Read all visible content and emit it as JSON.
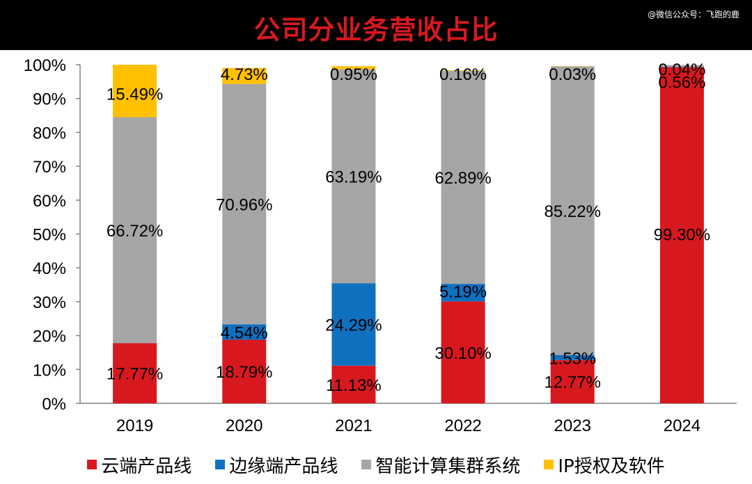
{
  "header": {
    "title": "公司分业务营收占比",
    "watermark": "@微信公众号：飞跑的鹿"
  },
  "chart_data": {
    "type": "bar",
    "stacked": true,
    "categories": [
      "2019",
      "2020",
      "2021",
      "2022",
      "2023",
      "2024"
    ],
    "ylim": [
      0,
      100
    ],
    "yticks": [
      "0%",
      "10%",
      "20%",
      "30%",
      "40%",
      "50%",
      "60%",
      "70%",
      "80%",
      "90%",
      "100%"
    ],
    "grid": false,
    "legend_position": "bottom",
    "series": [
      {
        "name": "云端产品线",
        "color": "#d7191f",
        "values": [
          17.77,
          18.79,
          11.13,
          30.1,
          12.77,
          99.3
        ],
        "labels": [
          "17.77%",
          "18.79%",
          "11.13%",
          "30.10%",
          "12.77%",
          "99.30%"
        ]
      },
      {
        "name": "边缘端产品线",
        "color": "#1070c0",
        "values": [
          0,
          4.54,
          24.29,
          5.19,
          1.53,
          0.04
        ],
        "labels": [
          "",
          "4.54%",
          "24.29%",
          "5.19%",
          "1.53%",
          "0.04%"
        ]
      },
      {
        "name": "智能计算集群系统",
        "color": "#a6a6a6",
        "values": [
          66.72,
          70.96,
          63.19,
          62.89,
          85.22,
          0.56
        ],
        "labels": [
          "66.72%",
          "70.96%",
          "63.19%",
          "62.89%",
          "85.22%",
          "0.56%"
        ]
      },
      {
        "name": "IP授权及软件",
        "color": "#ffc000",
        "values": [
          15.49,
          4.73,
          0.95,
          0.16,
          0.03,
          0
        ],
        "labels": [
          "15.49%",
          "4.73%",
          "0.95%",
          "0.16%",
          "0.03%",
          ""
        ]
      }
    ]
  }
}
